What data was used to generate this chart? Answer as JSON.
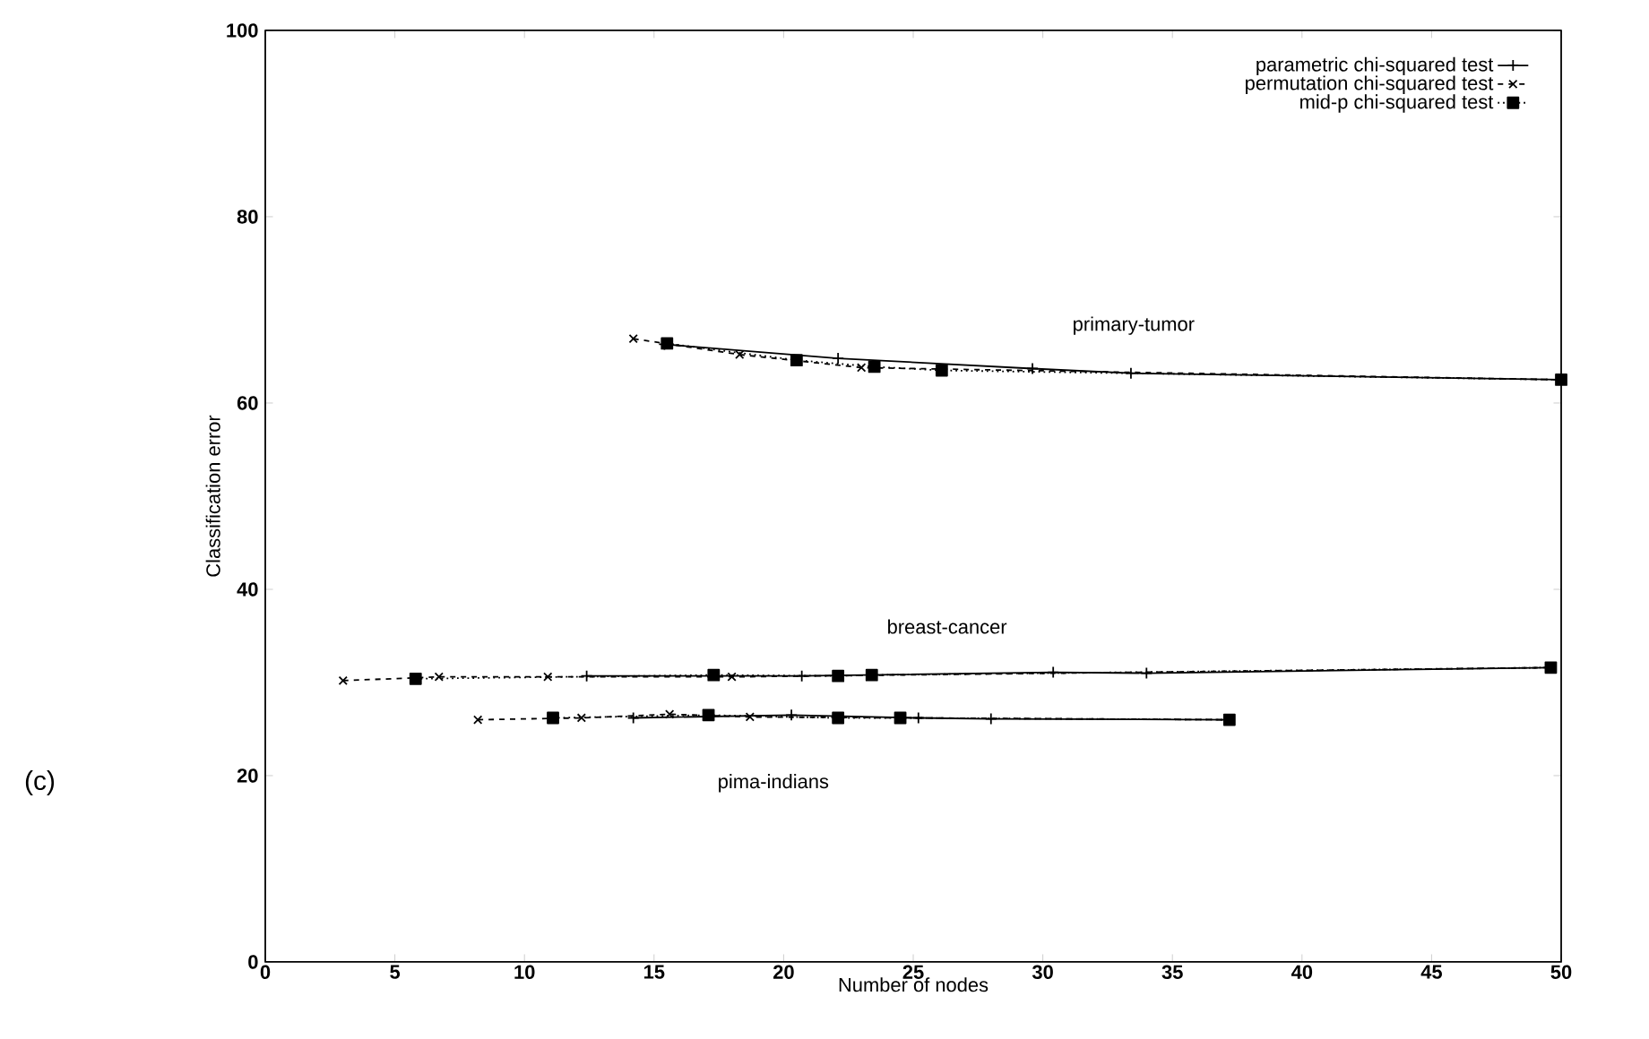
{
  "chart_data": {
    "type": "line",
    "xlabel": "Number of nodes",
    "ylabel": "Classification error",
    "xlim": [
      0,
      50
    ],
    "ylim": [
      0,
      100
    ],
    "xticks": [
      0,
      5,
      10,
      15,
      20,
      25,
      30,
      35,
      40,
      45,
      50
    ],
    "yticks": [
      0,
      20,
      40,
      60,
      80,
      100
    ],
    "legend": "top right",
    "series": [
      {
        "name": "parametric chi-squared test",
        "color": "#000000",
        "marker": "cross",
        "line_style": "solid",
        "x": [
          15.4,
          22.1,
          29.6,
          33.4,
          50
        ],
        "values": [
          66.3,
          64.8,
          63.7,
          63.2,
          62.5
        ]
      },
      {
        "name": "permutation chi-squared test",
        "color": "#000000",
        "marker": "cross",
        "line_style": "dashed",
        "x": [
          14.2,
          18.3,
          23.0,
          50
        ],
        "values": [
          66.9,
          65.2,
          63.8,
          62.5
        ]
      },
      {
        "name": "mid-p chi-squared test",
        "color": "#000000",
        "marker": "square",
        "line_style": "dotted",
        "x": [
          15.5,
          20.5,
          23.5,
          26.1,
          50
        ],
        "values": [
          66.4,
          64.6,
          63.9,
          63.5,
          62.5
        ]
      },
      {
        "color": "#000000",
        "marker": "cross",
        "line_style": "solid",
        "x": [
          12.4,
          20.7,
          30.4,
          34.0,
          49.6
        ],
        "values": [
          30.7,
          30.7,
          31.1,
          31.0,
          31.6
        ]
      },
      {
        "color": "#000000",
        "marker": "cross",
        "line_style": "dashed",
        "x": [
          3.0,
          6.7,
          10.9,
          18.0,
          49.6
        ],
        "values": [
          30.2,
          30.6,
          30.6,
          30.6,
          31.6
        ]
      },
      {
        "color": "#000000",
        "marker": "square",
        "line_style": "dotted",
        "x": [
          5.8,
          17.3,
          22.1,
          23.4,
          49.6
        ],
        "values": [
          30.4,
          30.8,
          30.7,
          30.8,
          31.6
        ]
      },
      {
        "color": "#000000",
        "marker": "cross",
        "line_style": "solid",
        "x": [
          14.2,
          20.3,
          25.2,
          28.0,
          37.2
        ],
        "values": [
          26.2,
          26.5,
          26.2,
          26.1,
          26.0
        ]
      },
      {
        "color": "#000000",
        "marker": "cross",
        "line_style": "dashed",
        "x": [
          8.2,
          12.2,
          15.6,
          18.7,
          37.2
        ],
        "values": [
          26.0,
          26.2,
          26.6,
          26.3,
          26.0
        ]
      },
      {
        "color": "#000000",
        "marker": "square",
        "line_style": "dotted",
        "x": [
          11.1,
          17.1,
          22.1,
          24.5,
          37.2
        ],
        "values": [
          26.2,
          26.5,
          26.2,
          26.2,
          26.0
        ]
      }
    ],
    "annotations": [
      "primary-tumor",
      "breast-cancer",
      "pima-indians",
      "(c)"
    ]
  }
}
